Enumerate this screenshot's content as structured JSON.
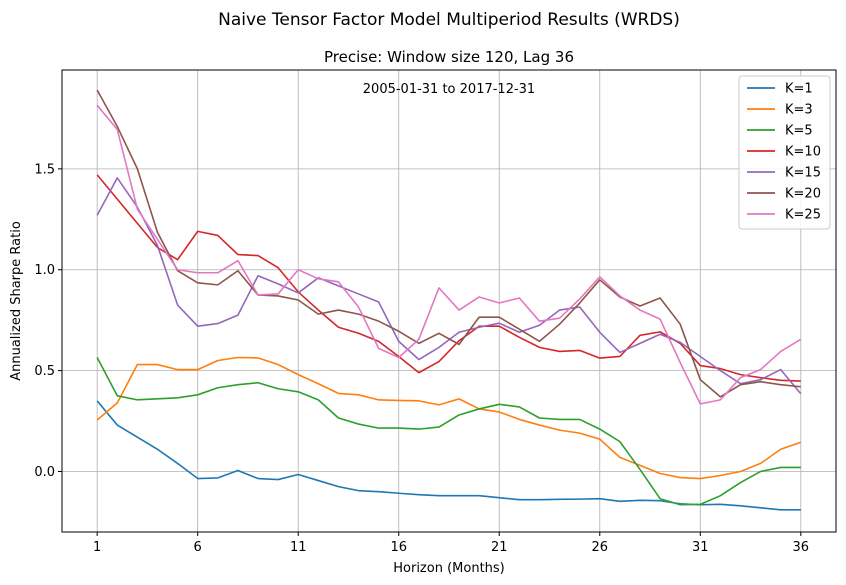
{
  "chart_data": {
    "type": "line",
    "suptitle": "Naive Tensor Factor Model Multiperiod Results (WRDS)",
    "title": "Precise: Window size 120, Lag 36",
    "annotation": "2005-01-31 to 2017-12-31",
    "xlabel": "Horizon (Months)",
    "ylabel": "Annualized Sharpe Ratio",
    "x": [
      1,
      2,
      3,
      4,
      5,
      6,
      7,
      8,
      9,
      10,
      11,
      12,
      13,
      14,
      15,
      16,
      17,
      18,
      19,
      20,
      21,
      22,
      23,
      24,
      25,
      26,
      27,
      28,
      29,
      30,
      31,
      32,
      33,
      34,
      35,
      36
    ],
    "xlim": [
      -0.75,
      37.75
    ],
    "ylim": [
      -0.3,
      1.99
    ],
    "xticks": [
      1,
      6,
      11,
      16,
      21,
      26,
      31,
      36
    ],
    "xtick_labels": [
      "1",
      "6",
      "11",
      "16",
      "21",
      "26",
      "31",
      "36"
    ],
    "yticks": [
      0.0,
      0.5,
      1.0,
      1.5
    ],
    "ytick_labels": [
      "0.0",
      "0.5",
      "1.0",
      "1.5"
    ],
    "grid": true,
    "legend_position": "top-right",
    "series": [
      {
        "name": "K=1",
        "color": "#1f77b4",
        "values": [
          0.35,
          0.23,
          0.17,
          0.11,
          0.04,
          -0.035,
          -0.032,
          0.005,
          -0.035,
          -0.04,
          -0.015,
          -0.045,
          -0.075,
          -0.095,
          -0.1,
          -0.108,
          -0.115,
          -0.12,
          -0.12,
          -0.12,
          -0.13,
          -0.14,
          -0.14,
          -0.138,
          -0.137,
          -0.135,
          -0.148,
          -0.143,
          -0.145,
          -0.16,
          -0.165,
          -0.163,
          -0.17,
          -0.18,
          -0.19,
          -0.19
        ]
      },
      {
        "name": "K=3",
        "color": "#ff7f0e",
        "values": [
          0.255,
          0.34,
          0.53,
          0.53,
          0.505,
          0.505,
          0.55,
          0.565,
          0.563,
          0.53,
          0.48,
          0.435,
          0.387,
          0.38,
          0.355,
          0.352,
          0.35,
          0.33,
          0.36,
          0.31,
          0.295,
          0.258,
          0.23,
          0.205,
          0.19,
          0.16,
          0.07,
          0.03,
          -0.01,
          -0.03,
          -0.035,
          -0.02,
          0.0,
          0.04,
          0.11,
          0.145
        ]
      },
      {
        "name": "K=5",
        "color": "#2ca02c",
        "values": [
          0.565,
          0.375,
          0.355,
          0.36,
          0.365,
          0.38,
          0.415,
          0.43,
          0.44,
          0.41,
          0.395,
          0.355,
          0.265,
          0.235,
          0.215,
          0.215,
          0.21,
          0.22,
          0.28,
          0.31,
          0.333,
          0.32,
          0.265,
          0.258,
          0.258,
          0.21,
          0.148,
          0.01,
          -0.135,
          -0.165,
          -0.163,
          -0.12,
          -0.055,
          0.0,
          0.02,
          0.02
        ]
      },
      {
        "name": "K=10",
        "color": "#d62728",
        "values": [
          1.47,
          1.35,
          1.23,
          1.11,
          1.05,
          1.19,
          1.17,
          1.075,
          1.07,
          1.01,
          0.89,
          0.8,
          0.715,
          0.685,
          0.645,
          0.57,
          0.49,
          0.545,
          0.648,
          0.72,
          0.72,
          0.665,
          0.615,
          0.595,
          0.6,
          0.562,
          0.57,
          0.675,
          0.692,
          0.635,
          0.525,
          0.51,
          0.48,
          0.465,
          0.452,
          0.448
        ]
      },
      {
        "name": "K=15",
        "color": "#9467bd",
        "values": [
          1.27,
          1.455,
          1.31,
          1.12,
          0.825,
          0.72,
          0.733,
          0.775,
          0.97,
          0.93,
          0.885,
          0.96,
          0.92,
          0.88,
          0.84,
          0.645,
          0.555,
          0.615,
          0.69,
          0.715,
          0.735,
          0.69,
          0.725,
          0.8,
          0.815,
          0.69,
          0.59,
          0.635,
          0.68,
          0.64,
          0.57,
          0.5,
          0.435,
          0.455,
          0.505,
          0.385
        ]
      },
      {
        "name": "K=20",
        "color": "#8c564b",
        "values": [
          1.89,
          1.71,
          1.5,
          1.185,
          0.995,
          0.935,
          0.925,
          0.995,
          0.875,
          0.87,
          0.85,
          0.78,
          0.8,
          0.78,
          0.745,
          0.695,
          0.635,
          0.685,
          0.63,
          0.765,
          0.765,
          0.705,
          0.645,
          0.73,
          0.835,
          0.95,
          0.865,
          0.82,
          0.86,
          0.73,
          0.455,
          0.37,
          0.43,
          0.445,
          0.43,
          0.42
        ]
      },
      {
        "name": "K=25",
        "color": "#e377c2",
        "values": [
          1.815,
          1.695,
          1.3,
          1.15,
          1.0,
          0.985,
          0.985,
          1.045,
          0.875,
          0.88,
          1.0,
          0.955,
          0.94,
          0.815,
          0.61,
          0.565,
          0.655,
          0.91,
          0.8,
          0.865,
          0.835,
          0.86,
          0.745,
          0.76,
          0.855,
          0.965,
          0.87,
          0.8,
          0.755,
          0.54,
          0.335,
          0.355,
          0.465,
          0.505,
          0.595,
          0.655
        ]
      }
    ]
  }
}
